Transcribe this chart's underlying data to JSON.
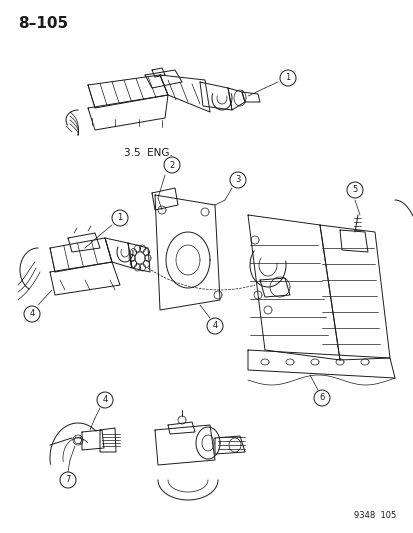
{
  "page_number": "8–105",
  "catalog_number": "9348  105",
  "label_35eng": "3.5  ENG.",
  "bg_color": "#f5f5f5",
  "line_color": "#1a1a1a",
  "fig_width": 4.14,
  "fig_height": 5.33,
  "dpi": 100,
  "title_fontsize": 11,
  "label_fontsize": 7,
  "callout_fontsize": 6,
  "catalog_fontsize": 6
}
